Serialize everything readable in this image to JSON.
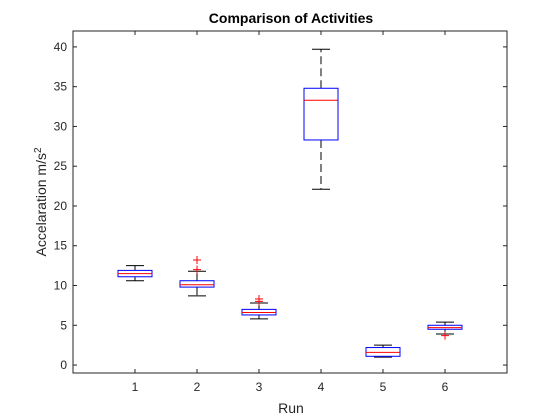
{
  "chart_data": {
    "type": "boxplot",
    "title": "Comparison of Activities",
    "xlabel": "Run",
    "ylabel_base": "Accelaration m/s",
    "ylabel_sup": "2",
    "categories": [
      "1",
      "2",
      "3",
      "4",
      "5",
      "6"
    ],
    "ylim": [
      -1,
      42
    ],
    "yticks": [
      0,
      5,
      10,
      15,
      20,
      25,
      30,
      35,
      40
    ],
    "grid": false,
    "colors": {
      "box": "#0000ff",
      "median": "#ff0000",
      "whisker": "#000000",
      "outlier": "#ff0000",
      "axis": "#262626"
    },
    "boxes": [
      {
        "category": "1",
        "whisker_low": 10.6,
        "q1": 11.1,
        "median": 11.5,
        "q3": 11.9,
        "whisker_high": 12.5,
        "outliers": []
      },
      {
        "category": "2",
        "whisker_low": 8.7,
        "q1": 9.8,
        "median": 10.1,
        "q3": 10.6,
        "whisker_high": 11.8,
        "outliers": [
          12.0,
          13.2
        ]
      },
      {
        "category": "3",
        "whisker_low": 5.8,
        "q1": 6.3,
        "median": 6.6,
        "q3": 7.0,
        "whisker_high": 7.8,
        "outliers": [
          8.0,
          8.3
        ]
      },
      {
        "category": "4",
        "whisker_low": 22.1,
        "q1": 28.3,
        "median": 33.3,
        "q3": 34.8,
        "whisker_high": 39.7,
        "outliers": []
      },
      {
        "category": "5",
        "whisker_low": 1.0,
        "q1": 1.1,
        "median": 1.6,
        "q3": 2.2,
        "whisker_high": 2.5,
        "outliers": []
      },
      {
        "category": "6",
        "whisker_low": 3.9,
        "q1": 4.5,
        "median": 4.7,
        "q3": 5.0,
        "whisker_high": 5.4,
        "outliers": [
          3.7
        ]
      }
    ]
  }
}
